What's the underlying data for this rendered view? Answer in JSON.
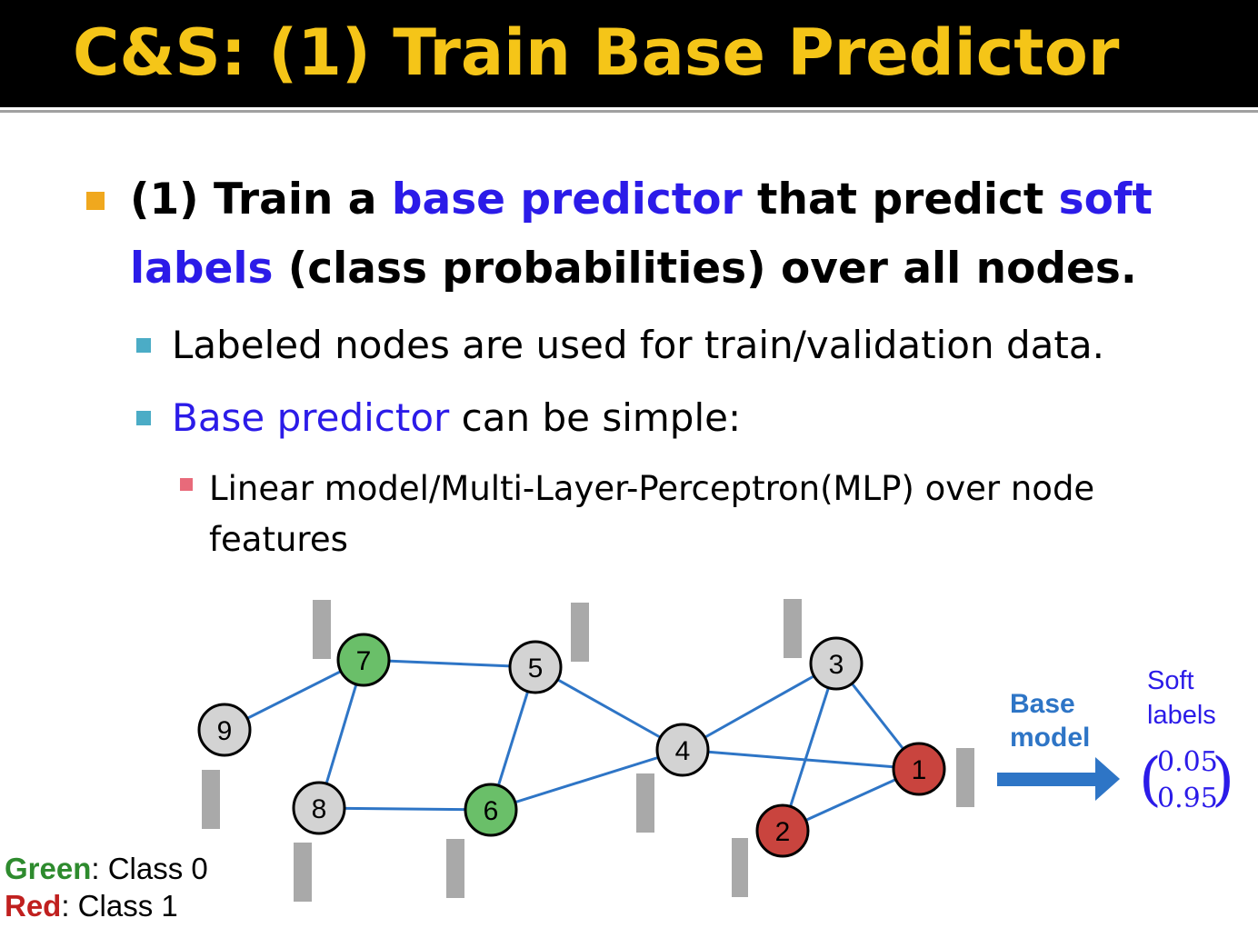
{
  "title": "C&S: (1) Train Base Predictor",
  "bullet1": {
    "part1": "(1) Train a ",
    "hl1": "base predictor",
    "part2": " that predict ",
    "hl2": "soft labels",
    "part3": " (class probabilities) over all nodes."
  },
  "bullet2a": {
    "text": "Labeled nodes are used for train/validation data."
  },
  "bullet2b": {
    "hl": "Base predictor",
    "text": " can be simple:"
  },
  "bullet3": {
    "text": "Linear model/Multi-Layer-Perceptron(MLP) over node features"
  },
  "graph": {
    "nodes": [
      {
        "id": "1",
        "label": "1",
        "class": "red"
      },
      {
        "id": "2",
        "label": "2",
        "class": "red"
      },
      {
        "id": "3",
        "label": "3",
        "class": "unlabeled"
      },
      {
        "id": "4",
        "label": "4",
        "class": "unlabeled"
      },
      {
        "id": "5",
        "label": "5",
        "class": "unlabeled"
      },
      {
        "id": "6",
        "label": "6",
        "class": "green"
      },
      {
        "id": "7",
        "label": "7",
        "class": "green"
      },
      {
        "id": "8",
        "label": "8",
        "class": "unlabeled"
      },
      {
        "id": "9",
        "label": "9",
        "class": "unlabeled"
      }
    ],
    "edges": [
      [
        "9",
        "7"
      ],
      [
        "7",
        "5"
      ],
      [
        "7",
        "8"
      ],
      [
        "8",
        "6"
      ],
      [
        "5",
        "6"
      ],
      [
        "5",
        "4"
      ],
      [
        "6",
        "4"
      ],
      [
        "4",
        "3"
      ],
      [
        "4",
        "1"
      ],
      [
        "3",
        "1"
      ],
      [
        "3",
        "2"
      ],
      [
        "2",
        "1"
      ]
    ],
    "colors": {
      "green": "#6abf69",
      "red": "#c9443e",
      "unlabeled": "#d3d3d3",
      "edge": "#2e75c6",
      "feature_bar": "#a9a9a9",
      "arrow": "#2e75c6"
    }
  },
  "legend": {
    "green_label": "Green",
    "green_text": ": Class 0",
    "red_label": "Red",
    "red_text": ": Class 1"
  },
  "base_model": {
    "line1": "Base",
    "line2": "model"
  },
  "soft_labels": {
    "line1": "Soft",
    "line2": "labels",
    "vector": [
      "0.05",
      "0.95"
    ]
  }
}
